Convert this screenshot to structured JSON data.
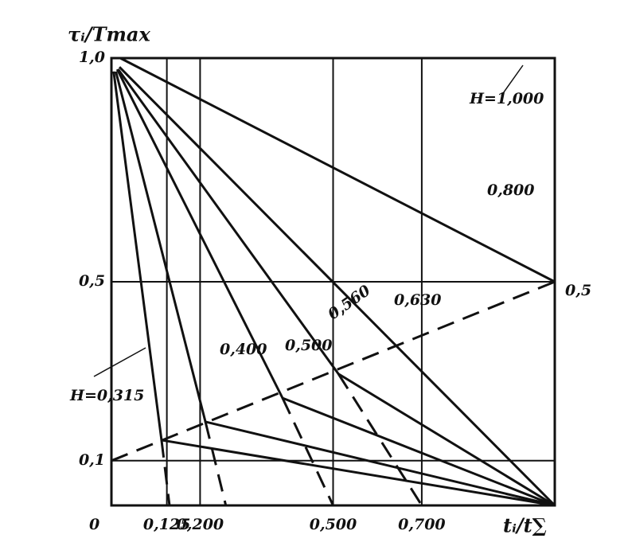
{
  "chart_data": {
    "type": "line",
    "x_label": "tᵢ/t∑",
    "y_label": "τᵢ/Tmax",
    "origin_label": "0",
    "right_label": "0,5",
    "xlim": [
      0,
      1
    ],
    "ylim": [
      0,
      1
    ],
    "xticks": [
      {
        "value": 0.125,
        "label": "0,125"
      },
      {
        "value": 0.2,
        "label": "0,200"
      },
      {
        "value": 0.5,
        "label": "0,500"
      },
      {
        "value": 0.7,
        "label": "0,700"
      }
    ],
    "yticks": [
      {
        "value": 0.1,
        "label": "0,1"
      },
      {
        "value": 0.5,
        "label": "0,5"
      },
      {
        "value": 1.0,
        "label": "1,0"
      }
    ],
    "grid": true,
    "color": "#111111",
    "series": [
      {
        "name": "H=1,000",
        "x": [
          0,
          1
        ],
        "values": [
          1,
          1
        ]
      },
      {
        "name": "0,800",
        "x": [
          0.02,
          1
        ],
        "values": [
          1.0,
          0.5
        ]
      },
      {
        "name": "0,630",
        "x": [
          0.018,
          1
        ],
        "values": [
          0.98,
          0
        ]
      },
      {
        "name": "0,560",
        "x": [
          0.015,
          0.512,
          1
        ],
        "values": [
          0.975,
          0.294,
          0
        ]
      },
      {
        "name": "0,500",
        "x": [
          0.013,
          0.386,
          1
        ],
        "values": [
          0.975,
          0.24,
          0
        ]
      },
      {
        "name": "0,400",
        "x": [
          0.01,
          0.212,
          1
        ],
        "values": [
          0.97,
          0.187,
          0
        ]
      },
      {
        "name": "H=0,315",
        "x": [
          0.005,
          0.113,
          1
        ],
        "values": [
          0.97,
          0.146,
          0
        ]
      },
      {
        "dashed": true,
        "x": [
          0.512,
          0.7
        ],
        "values": [
          0.294,
          0
        ]
      },
      {
        "dashed": true,
        "x": [
          0.386,
          0.5
        ],
        "values": [
          0.24,
          0
        ]
      },
      {
        "dashed": true,
        "x": [
          0.212,
          0.258
        ],
        "values": [
          0.187,
          0
        ]
      },
      {
        "dashed": true,
        "x": [
          0.113,
          0.131
        ],
        "values": [
          0.146,
          0
        ]
      },
      {
        "dashed": true,
        "x": [
          0,
          1
        ],
        "values": [
          0.1,
          0.5
        ]
      }
    ]
  }
}
